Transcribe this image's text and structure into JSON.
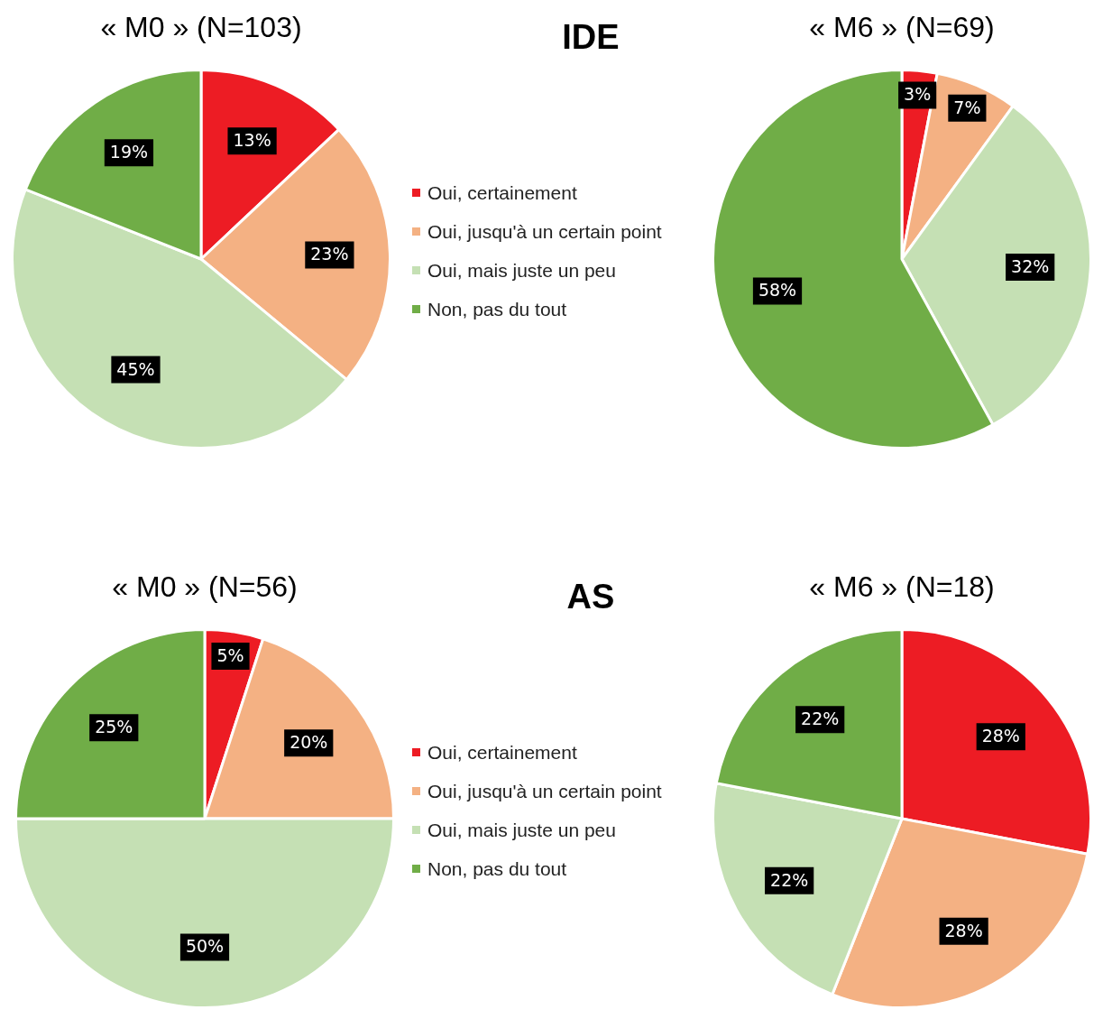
{
  "chart_data": [
    {
      "type": "pie",
      "title": "« M0 » (N=103)",
      "annotations": [
        "IDE"
      ],
      "categories": [
        "Oui, certainement",
        "Oui, jusqu'à un certain point",
        "Oui, mais juste un peu",
        "Non, pas du tout"
      ],
      "values": [
        13,
        23,
        45,
        19
      ],
      "value_labels": [
        "13%",
        "23%",
        "45%",
        "19%"
      ],
      "colors": [
        "#ed1c24",
        "#f4b183",
        "#c5e0b4",
        "#70ad47"
      ],
      "legend": "right"
    },
    {
      "type": "pie",
      "title": "« M6 » (N=69)",
      "categories": [
        null,
        null,
        null,
        null
      ],
      "values": [
        3,
        7,
        32,
        58
      ],
      "value_labels": [
        "3%",
        "7%",
        "32%",
        "58%"
      ],
      "colors": [
        "#ed1c24",
        "#f4b183",
        "#c5e0b4",
        "#70ad47"
      ]
    },
    {
      "type": "pie",
      "title": "« M0 » (N=56)",
      "annotations": [
        "AS"
      ],
      "categories": [
        "Oui, certainement",
        "Oui, jusqu'à un certain point",
        "Oui, mais juste un peu",
        "Non, pas du tout"
      ],
      "values": [
        5,
        20,
        50,
        25
      ],
      "value_labels": [
        "5%",
        "20%",
        "50%",
        "25%"
      ],
      "colors": [
        "#ed1c24",
        "#f4b183",
        "#c5e0b4",
        "#70ad47"
      ],
      "legend": "right"
    },
    {
      "type": "pie",
      "title": "« M6 » (N=18)",
      "categories": [
        null,
        null,
        null,
        null
      ],
      "values": [
        28,
        28,
        22,
        22
      ],
      "value_labels": [
        "28%",
        "28%",
        "22%",
        "22%"
      ],
      "colors": [
        "#ed1c24",
        "#f4b183",
        "#c5e0b4",
        "#70ad47"
      ]
    }
  ]
}
